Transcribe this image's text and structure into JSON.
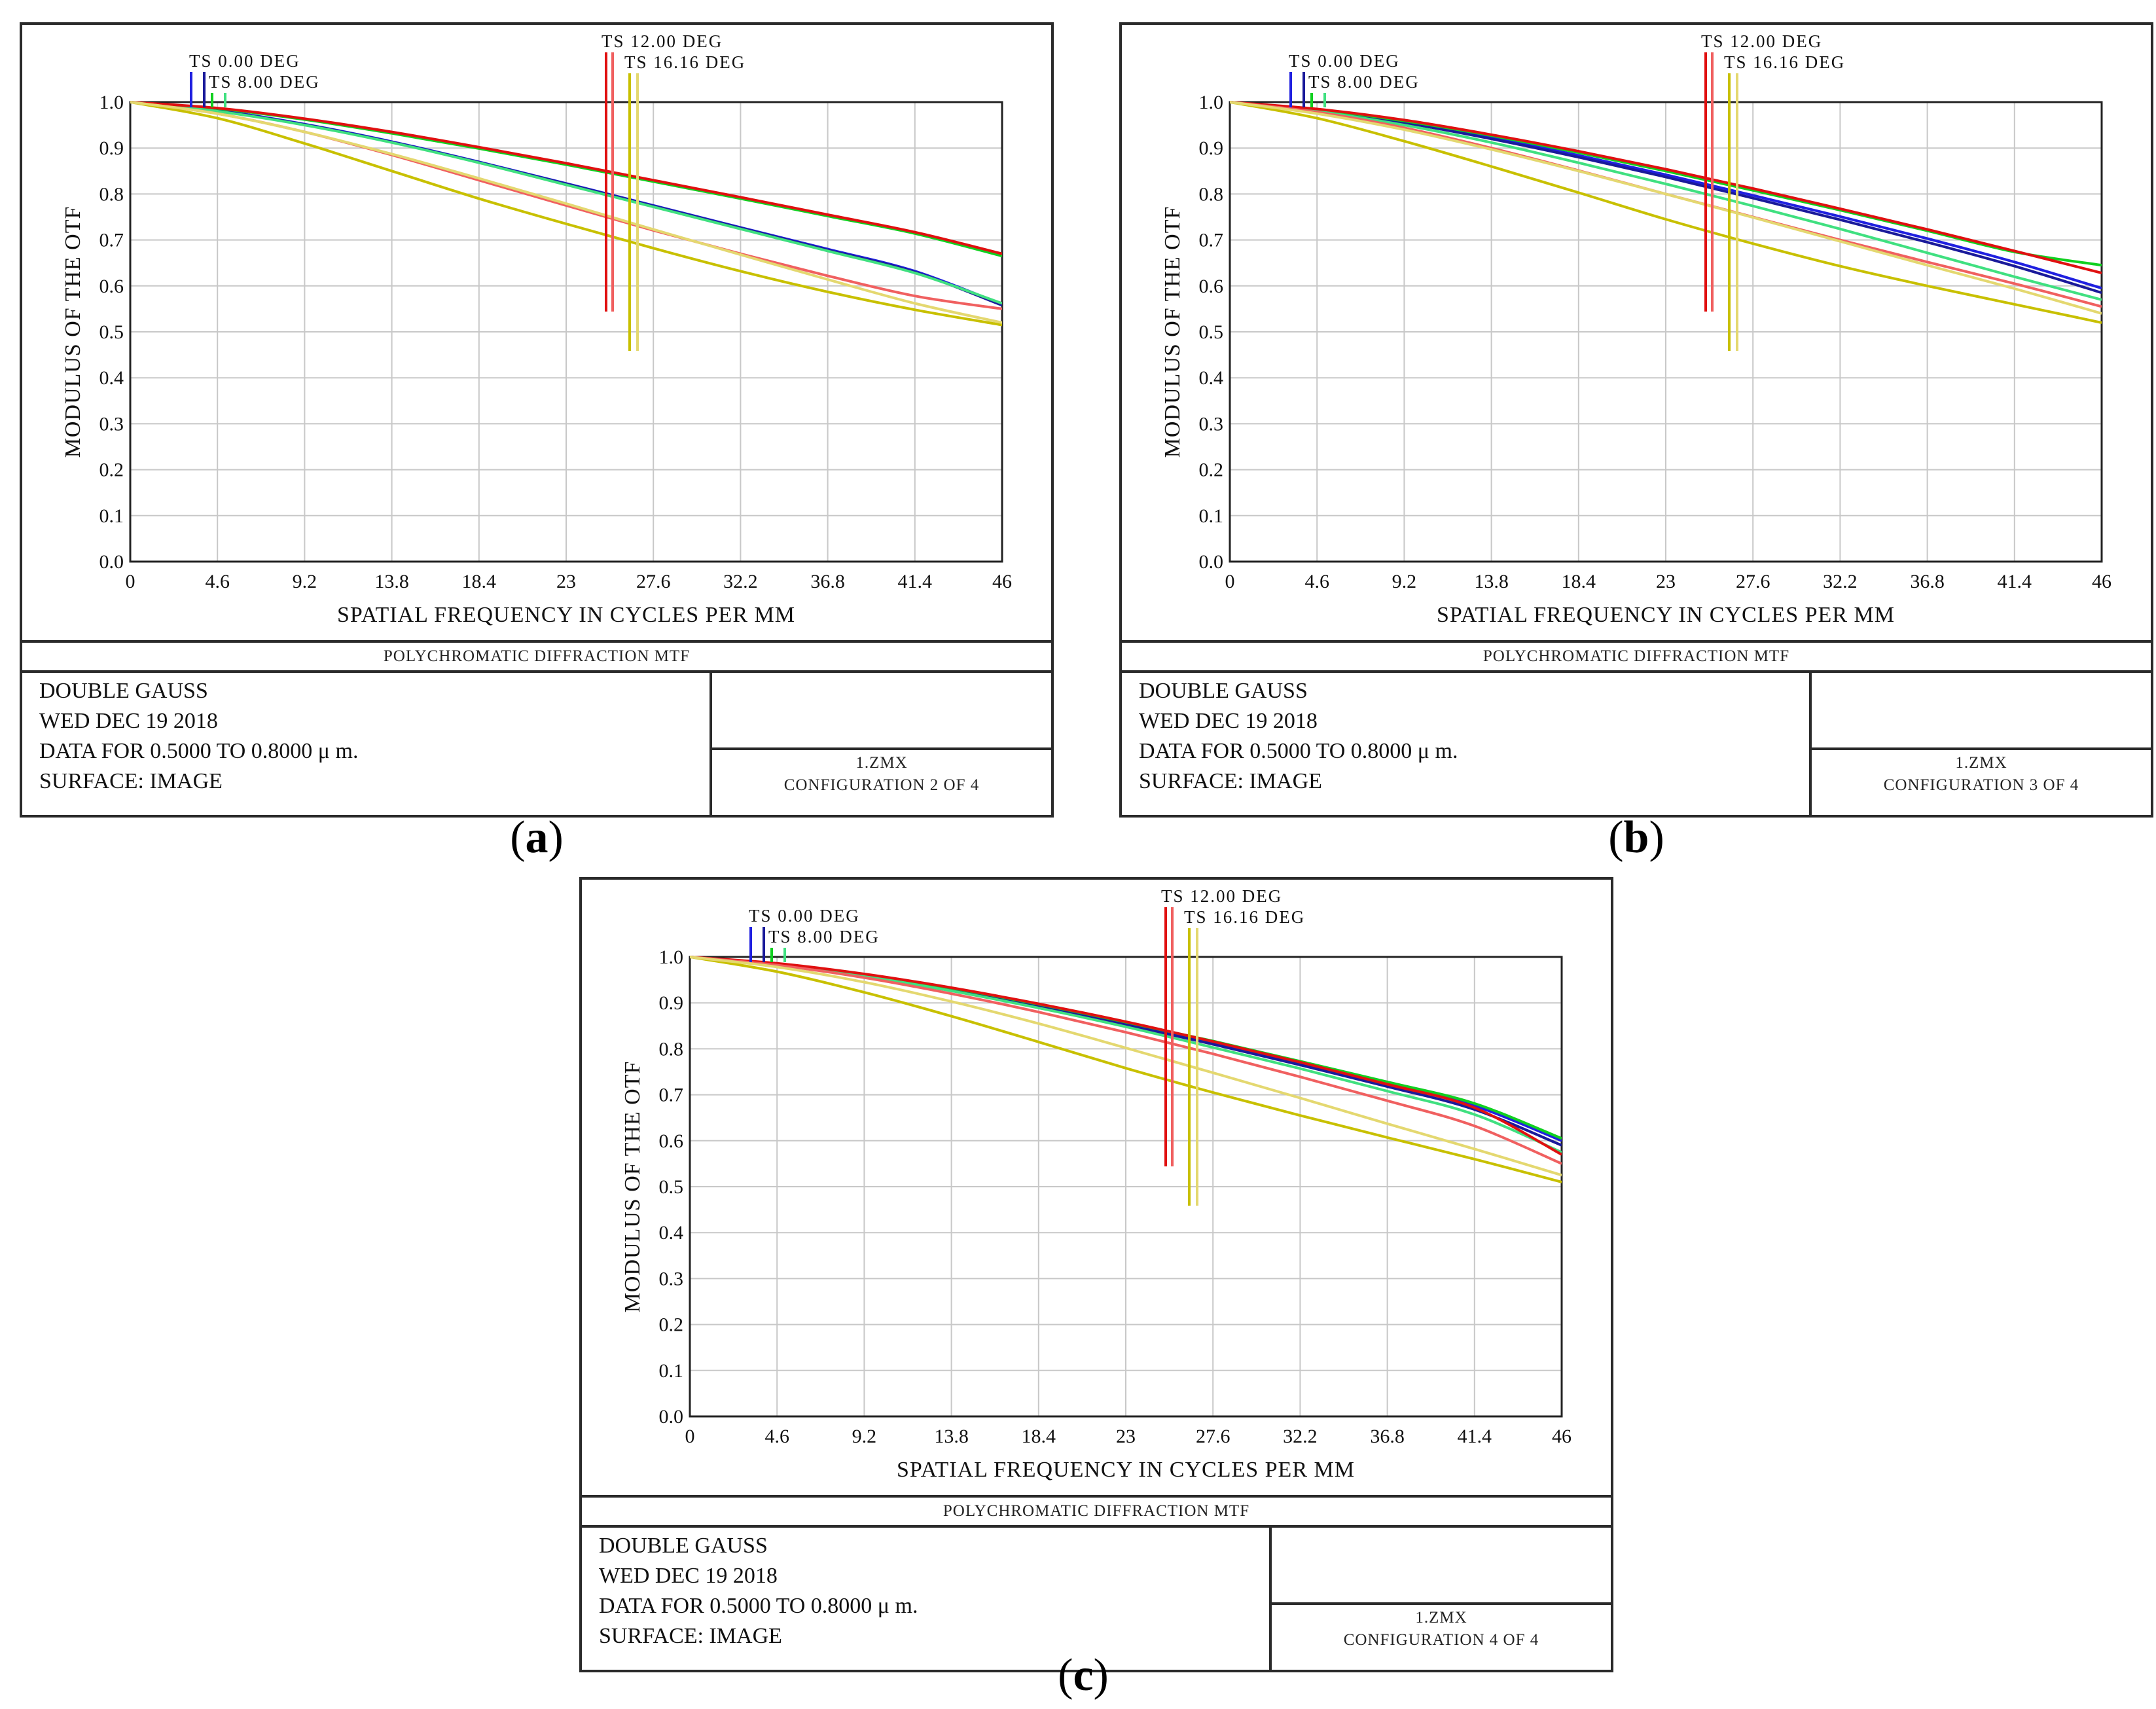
{
  "panels": [
    {
      "id": "a",
      "label": "a",
      "config_text": "CONFIGURATION 2 OF 4",
      "chart_data": {
        "type": "line",
        "xlabel": "SPATIAL FREQUENCY IN CYCLES PER MM",
        "ylabel": "MODULUS OF THE OTF",
        "xlim": [
          0,
          46
        ],
        "ylim": [
          0,
          1
        ],
        "xticks": [
          "0",
          "4.6",
          "9.2",
          "13.8",
          "18.4",
          "23",
          "27.6",
          "32.2",
          "36.8",
          "41.4",
          "46"
        ],
        "yticks": [
          "0.0",
          "0.1",
          "0.2",
          "0.3",
          "0.4",
          "0.5",
          "0.6",
          "0.7",
          "0.8",
          "0.9",
          "1.0"
        ],
        "series": [
          {
            "name": "TS 0.00 DEG T",
            "color": "#2020e0",
            "x": [
              0,
              4.6,
              9.2,
              13.8,
              18.4,
              23,
              27.6,
              32.2,
              36.8,
              41.4,
              46
            ],
            "y": [
              1.0,
              0.982,
              0.952,
              0.914,
              0.87,
              0.823,
              0.775,
              0.727,
              0.68,
              0.632,
              0.56
            ]
          },
          {
            "name": "TS 0.00 DEG S",
            "color": "#1a1a9a",
            "x": [
              0,
              4.6,
              9.2,
              13.8,
              18.4,
              23,
              27.6,
              32.2,
              36.8,
              41.4,
              46
            ],
            "y": [
              1.0,
              0.981,
              0.951,
              0.913,
              0.869,
              0.822,
              0.774,
              0.726,
              0.678,
              0.63,
              0.558
            ]
          },
          {
            "name": "TS 8.00 DEG T",
            "color": "#10d020",
            "x": [
              0,
              4.6,
              9.2,
              13.8,
              18.4,
              23,
              27.6,
              32.2,
              36.8,
              41.4,
              46
            ],
            "y": [
              1.0,
              0.986,
              0.962,
              0.932,
              0.899,
              0.864,
              0.827,
              0.79,
              0.752,
              0.714,
              0.665
            ]
          },
          {
            "name": "TS 8.00 DEG S",
            "color": "#40e080",
            "x": [
              0,
              4.6,
              9.2,
              13.8,
              18.4,
              23,
              27.6,
              32.2,
              36.8,
              41.4,
              46
            ],
            "y": [
              1.0,
              0.98,
              0.95,
              0.912,
              0.868,
              0.82,
              0.772,
              0.724,
              0.676,
              0.628,
              0.562
            ]
          },
          {
            "name": "TS 12.00 DEG T",
            "color": "#e01010",
            "x": [
              0,
              4.6,
              9.2,
              13.8,
              18.4,
              23,
              27.6,
              32.2,
              36.8,
              41.4,
              46
            ],
            "y": [
              1.0,
              0.987,
              0.964,
              0.935,
              0.902,
              0.867,
              0.83,
              0.793,
              0.755,
              0.717,
              0.67
            ]
          },
          {
            "name": "TS 12.00 DEG S",
            "color": "#f06060",
            "x": [
              0,
              4.6,
              9.2,
              13.8,
              18.4,
              23,
              27.6,
              32.2,
              36.8,
              41.4,
              46
            ],
            "y": [
              1.0,
              0.975,
              0.935,
              0.885,
              0.83,
              0.775,
              0.721,
              0.67,
              0.622,
              0.578,
              0.55
            ]
          },
          {
            "name": "TS 16.16 DEG T",
            "color": "#c8c000",
            "x": [
              0,
              4.6,
              9.2,
              13.8,
              18.4,
              23,
              27.6,
              32.2,
              36.8,
              41.4,
              46
            ],
            "y": [
              1.0,
              0.965,
              0.91,
              0.85,
              0.79,
              0.735,
              0.682,
              0.632,
              0.587,
              0.548,
              0.515
            ]
          },
          {
            "name": "TS 16.16 DEG S",
            "color": "#e4d870",
            "x": [
              0,
              4.6,
              9.2,
              13.8,
              18.4,
              23,
              27.6,
              32.2,
              36.8,
              41.4,
              46
            ],
            "y": [
              1.0,
              0.975,
              0.935,
              0.887,
              0.834,
              0.779,
              0.723,
              0.668,
              0.614,
              0.562,
              0.52
            ]
          }
        ],
        "legend": [
          {
            "text": "TS  0.00 DEG",
            "colors": [
              "#2020e0",
              "#1a1a9a"
            ]
          },
          {
            "text": "TS  8.00 DEG",
            "colors": [
              "#10d020",
              "#40e080"
            ]
          },
          {
            "text": "TS  12.00 DEG",
            "colors": [
              "#e01010",
              "#f06060"
            ]
          },
          {
            "text": "TS  16.16 DEG",
            "colors": [
              "#c8c000",
              "#e4d870"
            ]
          }
        ]
      }
    },
    {
      "id": "b",
      "label": "b",
      "config_text": "CONFIGURATION 3 OF 4",
      "chart_data": {
        "type": "line",
        "xlabel": "SPATIAL FREQUENCY IN CYCLES PER MM",
        "ylabel": "MODULUS OF THE OTF",
        "xlim": [
          0,
          46
        ],
        "ylim": [
          0,
          1
        ],
        "xticks": [
          "0",
          "4.6",
          "9.2",
          "13.8",
          "18.4",
          "23",
          "27.6",
          "32.2",
          "36.8",
          "41.4",
          "46"
        ],
        "yticks": [
          "0.0",
          "0.1",
          "0.2",
          "0.3",
          "0.4",
          "0.5",
          "0.6",
          "0.7",
          "0.8",
          "0.9",
          "1.0"
        ],
        "series": [
          {
            "name": "TS 0.00 DEG T",
            "color": "#2020e0",
            "x": [
              0,
              4.6,
              9.2,
              13.8,
              18.4,
              23,
              27.6,
              32.2,
              36.8,
              41.4,
              46
            ],
            "y": [
              1.0,
              0.983,
              0.957,
              0.923,
              0.884,
              0.842,
              0.797,
              0.751,
              0.703,
              0.652,
              0.595
            ]
          },
          {
            "name": "TS 0.00 DEG S",
            "color": "#1a1a9a",
            "x": [
              0,
              4.6,
              9.2,
              13.8,
              18.4,
              23,
              27.6,
              32.2,
              36.8,
              41.4,
              46
            ],
            "y": [
              1.0,
              0.982,
              0.955,
              0.92,
              0.88,
              0.837,
              0.791,
              0.744,
              0.695,
              0.643,
              0.585
            ]
          },
          {
            "name": "TS 8.00 DEG T",
            "color": "#10d020",
            "x": [
              0,
              4.6,
              9.2,
              13.8,
              18.4,
              23,
              27.6,
              32.2,
              36.8,
              41.4,
              46
            ],
            "y": [
              1.0,
              0.984,
              0.959,
              0.927,
              0.89,
              0.85,
              0.808,
              0.765,
              0.72,
              0.674,
              0.645
            ]
          },
          {
            "name": "TS 8.00 DEG S",
            "color": "#40e080",
            "x": [
              0,
              4.6,
              9.2,
              13.8,
              18.4,
              23,
              27.6,
              32.2,
              36.8,
              41.4,
              46
            ],
            "y": [
              1.0,
              0.98,
              0.95,
              0.912,
              0.868,
              0.822,
              0.774,
              0.724,
              0.672,
              0.62,
              0.57
            ]
          },
          {
            "name": "TS 12.00 DEG T",
            "color": "#e01010",
            "x": [
              0,
              4.6,
              9.2,
              13.8,
              18.4,
              23,
              27.6,
              32.2,
              36.8,
              41.4,
              46
            ],
            "y": [
              1.0,
              0.985,
              0.961,
              0.929,
              0.893,
              0.854,
              0.812,
              0.768,
              0.723,
              0.676,
              0.628
            ]
          },
          {
            "name": "TS 12.00 DEG S",
            "color": "#f06060",
            "x": [
              0,
              4.6,
              9.2,
              13.8,
              18.4,
              23,
              27.6,
              32.2,
              36.8,
              41.4,
              46
            ],
            "y": [
              1.0,
              0.978,
              0.944,
              0.9,
              0.851,
              0.8,
              0.75,
              0.7,
              0.652,
              0.605,
              0.555
            ]
          },
          {
            "name": "TS 16.16 DEG T",
            "color": "#c8c000",
            "x": [
              0,
              4.6,
              9.2,
              13.8,
              18.4,
              23,
              27.6,
              32.2,
              36.8,
              41.4,
              46
            ],
            "y": [
              1.0,
              0.965,
              0.915,
              0.86,
              0.803,
              0.745,
              0.692,
              0.643,
              0.6,
              0.56,
              0.52
            ]
          },
          {
            "name": "TS 16.16 DEG S",
            "color": "#e4d870",
            "x": [
              0,
              4.6,
              9.2,
              13.8,
              18.4,
              23,
              27.6,
              32.2,
              36.8,
              41.4,
              46
            ],
            "y": [
              1.0,
              0.975,
              0.94,
              0.897,
              0.85,
              0.8,
              0.749,
              0.697,
              0.645,
              0.594,
              0.54
            ]
          }
        ],
        "legend": [
          {
            "text": "TS  0.00 DEG",
            "colors": [
              "#2020e0",
              "#1a1a9a"
            ]
          },
          {
            "text": "TS  8.00 DEG",
            "colors": [
              "#10d020",
              "#40e080"
            ]
          },
          {
            "text": "TS  12.00 DEG",
            "colors": [
              "#e01010",
              "#f06060"
            ]
          },
          {
            "text": "TS  16.16 DEG",
            "colors": [
              "#c8c000",
              "#e4d870"
            ]
          }
        ]
      }
    },
    {
      "id": "c",
      "label": "c",
      "config_text": "CONFIGURATION 4 OF 4",
      "chart_data": {
        "type": "line",
        "xlabel": "SPATIAL FREQUENCY IN CYCLES PER MM",
        "ylabel": "MODULUS OF THE OTF",
        "xlim": [
          0,
          46
        ],
        "ylim": [
          0,
          1
        ],
        "xticks": [
          "0",
          "4.6",
          "9.2",
          "13.8",
          "18.4",
          "23",
          "27.6",
          "32.2",
          "36.8",
          "41.4",
          "46"
        ],
        "yticks": [
          "0.0",
          "0.1",
          "0.2",
          "0.3",
          "0.4",
          "0.5",
          "0.6",
          "0.7",
          "0.8",
          "0.9",
          "1.0"
        ],
        "series": [
          {
            "name": "TS 0.00 DEG T",
            "color": "#2020e0",
            "x": [
              0,
              4.6,
              9.2,
              13.8,
              18.4,
              23,
              27.6,
              32.2,
              36.8,
              41.4,
              46
            ],
            "y": [
              1.0,
              0.985,
              0.961,
              0.93,
              0.895,
              0.856,
              0.814,
              0.77,
              0.724,
              0.676,
              0.6
            ]
          },
          {
            "name": "TS 0.00 DEG S",
            "color": "#1a1a9a",
            "x": [
              0,
              4.6,
              9.2,
              13.8,
              18.4,
              23,
              27.6,
              32.2,
              36.8,
              41.4,
              46
            ],
            "y": [
              1.0,
              0.984,
              0.96,
              0.929,
              0.893,
              0.853,
              0.81,
              0.765,
              0.718,
              0.668,
              0.59
            ]
          },
          {
            "name": "TS 8.00 DEG T",
            "color": "#10d020",
            "x": [
              0,
              4.6,
              9.2,
              13.8,
              18.4,
              23,
              27.6,
              32.2,
              36.8,
              41.4,
              46
            ],
            "y": [
              1.0,
              0.985,
              0.962,
              0.932,
              0.897,
              0.858,
              0.817,
              0.773,
              0.728,
              0.681,
              0.605
            ]
          },
          {
            "name": "TS 8.00 DEG S",
            "color": "#40e080",
            "x": [
              0,
              4.6,
              9.2,
              13.8,
              18.4,
              23,
              27.6,
              32.2,
              36.8,
              41.4,
              46
            ],
            "y": [
              1.0,
              0.983,
              0.958,
              0.926,
              0.889,
              0.848,
              0.803,
              0.757,
              0.708,
              0.657,
              0.575
            ]
          },
          {
            "name": "TS 12.00 DEG T",
            "color": "#e01010",
            "x": [
              0,
              4.6,
              9.2,
              13.8,
              18.4,
              23,
              27.6,
              32.2,
              36.8,
              41.4,
              46
            ],
            "y": [
              1.0,
              0.986,
              0.963,
              0.933,
              0.898,
              0.859,
              0.816,
              0.771,
              0.723,
              0.672,
              0.57
            ]
          },
          {
            "name": "TS 12.00 DEG S",
            "color": "#f06060",
            "x": [
              0,
              4.6,
              9.2,
              13.8,
              18.4,
              23,
              27.6,
              32.2,
              36.8,
              41.4,
              46
            ],
            "y": [
              1.0,
              0.982,
              0.955,
              0.92,
              0.88,
              0.836,
              0.789,
              0.739,
              0.687,
              0.632,
              0.55
            ]
          },
          {
            "name": "TS 16.16 DEG T",
            "color": "#c8c000",
            "x": [
              0,
              4.6,
              9.2,
              13.8,
              18.4,
              23,
              27.6,
              32.2,
              36.8,
              41.4,
              46
            ],
            "y": [
              1.0,
              0.968,
              0.923,
              0.871,
              0.815,
              0.758,
              0.705,
              0.655,
              0.607,
              0.56,
              0.51
            ]
          },
          {
            "name": "TS 16.16 DEG S",
            "color": "#e4d870",
            "x": [
              0,
              4.6,
              9.2,
              13.8,
              18.4,
              23,
              27.6,
              32.2,
              36.8,
              41.4,
              46
            ],
            "y": [
              1.0,
              0.978,
              0.945,
              0.903,
              0.855,
              0.802,
              0.748,
              0.693,
              0.637,
              0.582,
              0.525
            ]
          }
        ],
        "legend": [
          {
            "text": "TS  0.00 DEG",
            "colors": [
              "#2020e0",
              "#1a1a9a"
            ]
          },
          {
            "text": "TS  8.00 DEG",
            "colors": [
              "#10d020",
              "#40e080"
            ]
          },
          {
            "text": "TS  12.00 DEG",
            "colors": [
              "#e01010",
              "#f06060"
            ]
          },
          {
            "text": "TS  16.16 DEG",
            "colors": [
              "#c8c000",
              "#e4d870"
            ]
          }
        ]
      }
    }
  ],
  "common": {
    "plot_title": "POLYCHROMATIC DIFFRACTION MTF",
    "lens_name": "DOUBLE GAUSS",
    "date": "WED DEC 19 2018",
    "data_range": "DATA FOR 0.5000 TO 0.8000 μ m.",
    "surface": "SURFACE: IMAGE",
    "file_name": "1.ZMX"
  }
}
